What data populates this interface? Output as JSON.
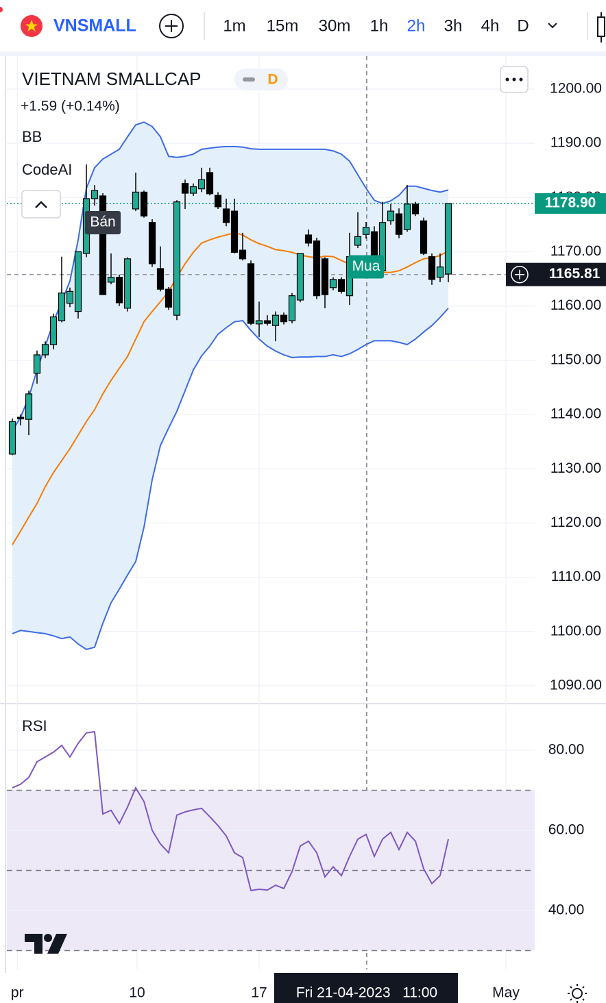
{
  "toolbar": {
    "symbol": "VNSMALL",
    "intervals": [
      "1m",
      "15m",
      "30m",
      "1h",
      "2h",
      "3h",
      "4h",
      "D"
    ],
    "active": "2h"
  },
  "chart_data": [
    {
      "type": "candlestick",
      "title": "VIETNAM SMALLCAP",
      "badge": "D",
      "change": "+1.59 (+0.14%)",
      "indicators": [
        "BB",
        "CodeAI"
      ],
      "x": [
        0,
        1,
        2,
        3,
        4,
        5,
        6,
        7,
        8,
        9,
        10,
        11,
        12,
        13,
        14,
        15,
        16,
        17,
        18,
        19,
        20,
        21,
        22,
        23,
        24,
        25,
        26,
        27,
        28,
        29,
        30,
        31,
        32,
        33,
        34,
        35,
        36,
        37,
        38,
        39,
        40,
        41,
        42,
        43,
        44,
        45,
        46,
        47,
        48,
        49,
        50,
        51,
        52,
        53
      ],
      "open": [
        1132.7,
        1139.5,
        1139.1,
        1147.6,
        1151,
        1152.9,
        1157.3,
        1160.5,
        1159,
        1169.7,
        1179.8,
        1180.3,
        1164.4,
        1165.3,
        1159.6,
        1177.9,
        1181,
        1175.4,
        1166.9,
        1163.1,
        1158.3,
        1182.6,
        1180.8,
        1181.6,
        1184.6,
        1180.4,
        1177.9,
        1177.5,
        1170.3,
        1167.8,
        1156.7,
        1157.3,
        1156.4,
        1158.3,
        1157.3,
        1161.1,
        1173.1,
        1172,
        1168.7,
        1163.4,
        1164.9,
        1161.9,
        1171.2,
        1173.2,
        1173.7,
        1166.5,
        1175.7,
        1177,
        1174.1,
        1178.8,
        1175.7,
        1169.1,
        1165.3,
        1165.9
      ],
      "high": [
        1139.3,
        1140,
        1144.4,
        1151.8,
        1153.5,
        1158.6,
        1169.1,
        1163.4,
        1170,
        1186.1,
        1182.3,
        1180.8,
        1169.7,
        1165.8,
        1169,
        1184.6,
        1181.3,
        1176,
        1171,
        1163.5,
        1179.5,
        1183.3,
        1182.6,
        1185.5,
        1185.5,
        1181,
        1179.8,
        1179.8,
        1173.5,
        1168.4,
        1160.8,
        1158.3,
        1159,
        1158.8,
        1162.4,
        1169.7,
        1174.1,
        1172.6,
        1169,
        1165.3,
        1165.3,
        1173.5,
        1177.3,
        1175.5,
        1174.7,
        1179.2,
        1178.8,
        1178,
        1182.3,
        1179.2,
        1176.3,
        1169.7,
        1169.7,
        1178.9
      ],
      "low": [
        1132.5,
        1138,
        1136.2,
        1145.7,
        1150.4,
        1152,
        1157,
        1159.8,
        1157.7,
        1169,
        1178.5,
        1162.1,
        1164,
        1160,
        1159,
        1177.5,
        1176.3,
        1167.2,
        1162.7,
        1159.3,
        1157.4,
        1177.9,
        1180.3,
        1181,
        1180.4,
        1177.9,
        1174.7,
        1169.7,
        1168.4,
        1156.5,
        1154.3,
        1156.4,
        1153.5,
        1156.6,
        1156.8,
        1160.7,
        1171,
        1161.3,
        1159.6,
        1162.9,
        1162.3,
        1160.2,
        1170.7,
        1172.4,
        1165.5,
        1165.9,
        1175,
        1172.5,
        1173.7,
        1176.6,
        1169.4,
        1163.9,
        1164.4,
        1164.4
      ],
      "close": [
        1138.7,
        1139.2,
        1143.8,
        1151,
        1152.9,
        1158,
        1162.4,
        1162.7,
        1170,
        1179.8,
        1181.3,
        1162.1,
        1165.3,
        1160.6,
        1168.7,
        1181,
        1176.6,
        1167.8,
        1163.1,
        1159.8,
        1179.2,
        1180.8,
        1182,
        1183.3,
        1180.7,
        1178.3,
        1175.4,
        1169.9,
        1168.7,
        1156.8,
        1157.3,
        1156.8,
        1158.3,
        1157.1,
        1161.9,
        1169.7,
        1171.6,
        1161.9,
        1162.1,
        1164.9,
        1162.7,
        1169.1,
        1172.8,
        1174.5,
        1165.9,
        1175.4,
        1177.5,
        1173.2,
        1178.8,
        1177,
        1169.7,
        1164.9,
        1167.2,
        1178.9
      ],
      "up_color": "#22ab94",
      "down_color": "#000000",
      "series": [
        {
          "color": "#3d6be6",
          "values": [
            1137,
            1139.5,
            1143.2,
            1148.2,
            1152.6,
            1157.1,
            1160.8,
            1164.6,
            1172.2,
            1181.7,
            1185.5,
            1187.1,
            1188,
            1188.9,
            1191.2,
            1193.4,
            1193.9,
            1193.1,
            1191.2,
            1187.6,
            1187.4,
            1187.6,
            1188,
            1188.9,
            1189.1,
            1189.3,
            1189.4,
            1189.4,
            1189.3,
            1189,
            1188.9,
            1188.9,
            1188.9,
            1188.9,
            1188.9,
            1188.9,
            1188.9,
            1188.9,
            1188.9,
            1188.6,
            1188,
            1186.7,
            1184.2,
            1181.7,
            1179.5,
            1178.9,
            1179.4,
            1180.4,
            1182.1,
            1182.1,
            1181.7,
            1181.3,
            1181,
            1181.4
          ]
        },
        {
          "color": "#f57c00",
          "values": [
            1116,
            1118.5,
            1121.1,
            1123.6,
            1126.7,
            1129.3,
            1131.5,
            1133.7,
            1136.2,
            1138.7,
            1140.9,
            1143.8,
            1146.3,
            1148.5,
            1150.7,
            1153.9,
            1157.1,
            1159,
            1160.8,
            1162.7,
            1165.3,
            1167.8,
            1169.9,
            1171.6,
            1172.2,
            1172.7,
            1173.1,
            1173.5,
            1173.1,
            1172.2,
            1171.5,
            1171,
            1170.4,
            1170.2,
            1169.9,
            1169.4,
            1169.1,
            1168.9,
            1169.2,
            1169.1,
            1168.4,
            1167.7,
            1166.9,
            1166.5,
            1166.3,
            1166.2,
            1166.2,
            1166.5,
            1167.2,
            1168,
            1168.7,
            1168.9,
            1169.3,
            1170.2
          ]
        },
        {
          "color": "#3d6be6",
          "values": [
            1099.6,
            1100.2,
            1100,
            1099.8,
            1099.6,
            1099.2,
            1098.7,
            1099,
            1097.7,
            1096.7,
            1097.1,
            1101.5,
            1105.3,
            1107.8,
            1110.4,
            1112.9,
            1119.2,
            1128,
            1134.3,
            1137.5,
            1140.6,
            1144.4,
            1148.2,
            1150.8,
            1152.6,
            1154.8,
            1156,
            1157.1,
            1157.3,
            1155.5,
            1153.9,
            1152.6,
            1151.7,
            1151,
            1150.5,
            1150.6,
            1150.6,
            1150.7,
            1150.7,
            1151,
            1150.7,
            1151.2,
            1152,
            1152.9,
            1153.6,
            1153.6,
            1153.6,
            1153.3,
            1152.9,
            1153.9,
            1155.2,
            1156.4,
            1157.9,
            1159.6
          ]
        }
      ],
      "band_fill": "#e3effa",
      "ylim": [
        1086.96,
        1206.06
      ],
      "yticks": [
        {
          "value": 1200,
          "label": "1200.00"
        },
        {
          "value": 1190,
          "label": "1190.00"
        },
        {
          "value": 1180,
          "label": "1180.00"
        },
        {
          "value": 1170,
          "label": "1170.00"
        },
        {
          "value": 1160,
          "label": "1160.00"
        },
        {
          "value": 1150,
          "label": "1150.00"
        },
        {
          "value": 1140,
          "label": "1140.00"
        },
        {
          "value": 1130,
          "label": "1130.00"
        },
        {
          "value": 1120,
          "label": "1120.00"
        },
        {
          "value": 1110,
          "label": "1110.00"
        },
        {
          "value": 1100,
          "label": "1100.00"
        },
        {
          "value": 1090,
          "label": "1090.00"
        }
      ],
      "xlim": [
        -0.667,
        63.5
      ],
      "xticks": [
        {
          "value": 0.6,
          "label": "pr"
        },
        {
          "value": 15.17,
          "label": "10"
        },
        {
          "value": 30,
          "label": "17"
        },
        {
          "value": 60,
          "label": "May"
        }
      ],
      "last_price": {
        "value": 1178.9,
        "label": "1178.90"
      },
      "crosshair": {
        "x": {
          "value": 43.08,
          "label": "Fri 21-04-2023   11:00"
        },
        "y": {
          "value": 1165.81,
          "label": "1165.81"
        }
      },
      "annotations": [
        {
          "text": "Bán",
          "x": 11,
          "color": "#363a45"
        },
        {
          "text": "Mua",
          "x": 43,
          "color": "#089981"
        }
      ],
      "grid": true
    },
    {
      "type": "line",
      "title": "RSI",
      "x": [
        0,
        1,
        2,
        3,
        4,
        5,
        6,
        7,
        8,
        9,
        10,
        11,
        12,
        13,
        14,
        15,
        16,
        17,
        18,
        19,
        20,
        21,
        22,
        23,
        24,
        25,
        26,
        27,
        28,
        29,
        30,
        31,
        32,
        33,
        34,
        35,
        36,
        37,
        38,
        39,
        40,
        41,
        42,
        43,
        44,
        45,
        46,
        47,
        48,
        49,
        50,
        51,
        52,
        53
      ],
      "values": [
        70.6,
        71.5,
        73.2,
        77.1,
        78.3,
        79.5,
        81.2,
        78.3,
        81.7,
        84.3,
        84.6,
        64.1,
        65,
        61.7,
        65.8,
        70.6,
        67.2,
        60,
        56.6,
        54.4,
        63.8,
        64.6,
        65.1,
        65.5,
        63.4,
        61.2,
        58.6,
        54.4,
        53.2,
        45,
        45.3,
        45.1,
        46.3,
        45.5,
        49.7,
        56.1,
        57.3,
        54.4,
        48.4,
        50.9,
        48.7,
        53.5,
        57.8,
        59,
        53.5,
        57.8,
        59.5,
        55.2,
        59.5,
        57.3,
        50.4,
        46.7,
        48.7,
        57.8
      ],
      "color": "#7e57c2",
      "band": [
        30,
        70
      ],
      "band_fill": "#ede9f7",
      "levels": [
        70,
        50,
        30
      ],
      "ylim": [
        25.3,
        91.1
      ],
      "yticks": [
        {
          "value": 80,
          "label": "80.00"
        },
        {
          "value": 60,
          "label": "60.00"
        },
        {
          "value": 40,
          "label": "40.00"
        }
      ],
      "xlim": [
        -0.667,
        63.5
      ],
      "grid": true
    }
  ]
}
